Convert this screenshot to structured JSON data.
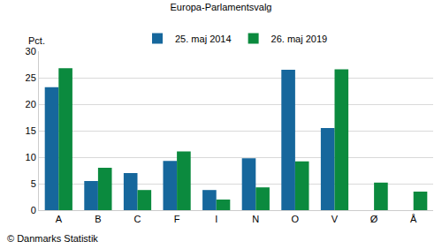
{
  "chart_data": {
    "type": "bar",
    "title": "Europa-Parlamentsvalg",
    "ylabel": "Pct.",
    "annotations": [
      "© Danmarks Statistik"
    ],
    "categories": [
      "A",
      "B",
      "C",
      "F",
      "I",
      "N",
      "O",
      "V",
      "Ø",
      "Å"
    ],
    "series": [
      {
        "name": "25. maj 2014",
        "color": "#16679c",
        "values": [
          23.2,
          5.5,
          7.0,
          9.3,
          3.8,
          9.8,
          26.5,
          15.5,
          null,
          null
        ]
      },
      {
        "name": "26. maj 2019",
        "color": "#0b8a3e",
        "values": [
          26.8,
          8.0,
          3.8,
          11.1,
          2.0,
          4.3,
          9.2,
          26.6,
          5.2,
          3.5
        ]
      }
    ],
    "ylim": [
      0,
      30
    ],
    "yticks": [
      0,
      5,
      10,
      15,
      20,
      25,
      30
    ],
    "grid": true,
    "legend": "top"
  }
}
